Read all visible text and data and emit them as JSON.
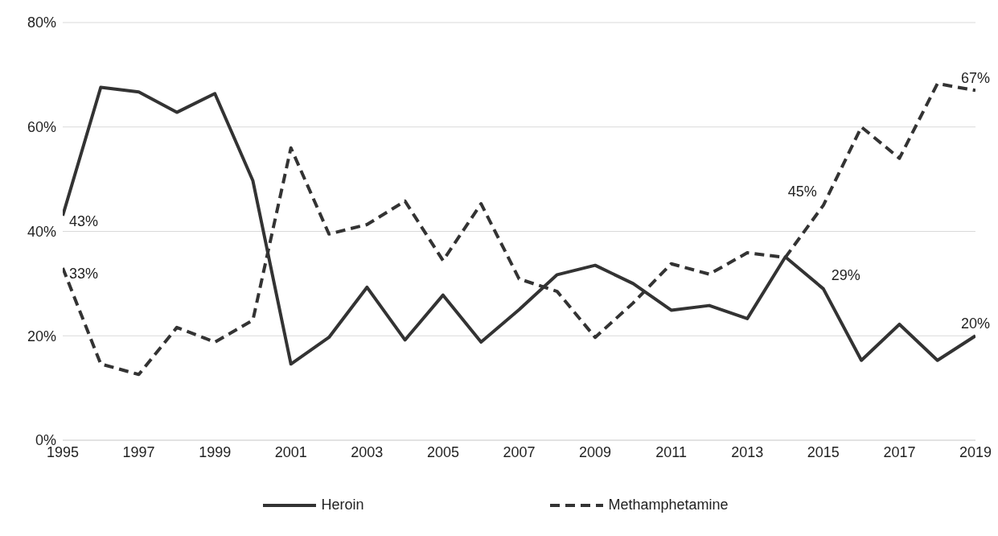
{
  "chart_data": {
    "type": "line",
    "x": [
      1995,
      1996,
      1997,
      1998,
      1999,
      2000,
      2001,
      2002,
      2003,
      2004,
      2005,
      2006,
      2007,
      2008,
      2009,
      2010,
      2011,
      2012,
      2013,
      2014,
      2015,
      2016,
      2017,
      2018,
      2019
    ],
    "series": [
      {
        "name": "Heroin",
        "color": "#333333",
        "line_style": "solid",
        "values": [
          43,
          67.6,
          66.7,
          62.8,
          66.4,
          49.7,
          14.6,
          19.7,
          29.3,
          19.2,
          27.8,
          18.8,
          25,
          31.7,
          33.5,
          30,
          24.9,
          25.8,
          23.3,
          35.1,
          29,
          15.3,
          22.2,
          15.3,
          20
        ],
        "value_labels": [
          "43%",
          null,
          null,
          null,
          null,
          null,
          null,
          null,
          null,
          null,
          null,
          null,
          null,
          null,
          null,
          null,
          null,
          null,
          null,
          null,
          "29%",
          null,
          null,
          null,
          "20%"
        ]
      },
      {
        "name": "Methamphetamine",
        "color": "#333333",
        "line_style": "dashed",
        "values": [
          33,
          14.6,
          12.6,
          21.6,
          18.8,
          23,
          56,
          39.5,
          41.3,
          45.8,
          34.4,
          45.3,
          30.9,
          28.5,
          19.7,
          26.3,
          33.8,
          31.8,
          35.9,
          35,
          45,
          60,
          54,
          68.3,
          67
        ],
        "value_labels": [
          "33%",
          null,
          null,
          null,
          null,
          null,
          null,
          null,
          null,
          null,
          null,
          null,
          null,
          null,
          null,
          null,
          null,
          null,
          null,
          null,
          "45%",
          null,
          null,
          null,
          "67%"
        ]
      }
    ],
    "xlim": [
      1995,
      2019
    ],
    "xticks": [
      1995,
      1997,
      1999,
      2001,
      2003,
      2005,
      2007,
      2009,
      2011,
      2013,
      2015,
      2017,
      2019
    ],
    "ylim": [
      0,
      80
    ],
    "yticks": [
      {
        "value": 0,
        "label": "0%"
      },
      {
        "value": 20,
        "label": "20%"
      },
      {
        "value": 40,
        "label": "40%"
      },
      {
        "value": 60,
        "label": "60%"
      },
      {
        "value": 80,
        "label": "80%"
      }
    ],
    "grid": "y",
    "legend": "bottom",
    "marker": "none"
  }
}
